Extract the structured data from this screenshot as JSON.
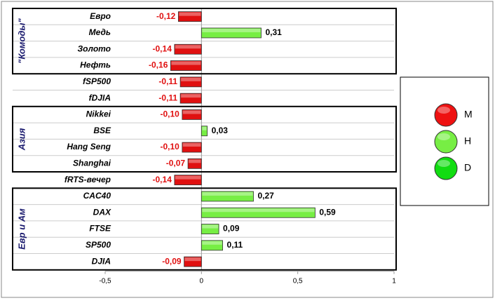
{
  "chart_data": {
    "type": "hbar",
    "categories": [
      "Евро",
      "Медь",
      "Золото",
      "Нефть",
      "fSP500",
      "fDJIA",
      "Nikkei",
      "BSE",
      "Hang Seng",
      "Shanghai",
      "fRTS-вечер",
      "CAC40",
      "DAX",
      "FTSE",
      "SP500",
      "DJIA"
    ],
    "values": [
      -0.12,
      0.31,
      -0.14,
      -0.16,
      -0.11,
      -0.11,
      -0.1,
      0.03,
      -0.1,
      -0.07,
      -0.14,
      0.27,
      0.59,
      0.09,
      0.11,
      -0.09
    ],
    "value_labels": [
      "-0,12",
      "0,31",
      "-0,14",
      "-0,16",
      "-0,11",
      "-0,11",
      "-0,10",
      "0,03",
      "-0,10",
      "-0,07",
      "-0,14",
      "0,27",
      "0,59",
      "0,09",
      "0,11",
      "-0,09"
    ],
    "negative_color": "#e01010",
    "positive_color": "#77ee44",
    "xlim": [
      -0.5,
      1
    ],
    "xticks": [
      {
        "value": -0.5,
        "label": "-0,5"
      },
      0,
      {
        "value": 0.5,
        "label": "0,5"
      },
      1
    ],
    "groups": [
      {
        "label": "\"Комоды\"",
        "range": [
          0,
          3
        ]
      },
      {
        "label": "Азия",
        "range": [
          6,
          9
        ]
      },
      {
        "label": "Евр и Ам",
        "range": [
          11,
          15
        ]
      }
    ],
    "legend": {
      "position": "right",
      "items": [
        {
          "name": "M",
          "color": "#ee1111"
        },
        {
          "name": "H",
          "color": "#77ee44"
        },
        {
          "name": "D",
          "color": "#11dd11"
        }
      ]
    }
  }
}
